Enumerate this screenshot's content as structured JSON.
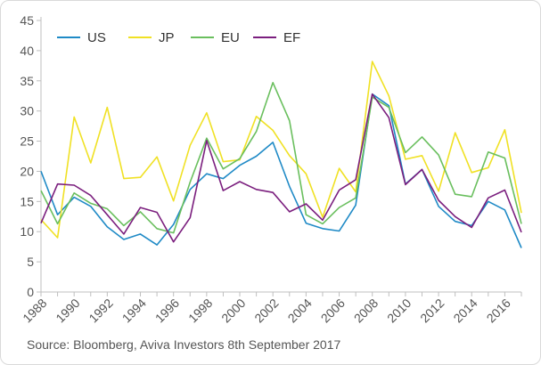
{
  "chart_data": {
    "type": "line",
    "x": [
      1988,
      1989,
      1990,
      1991,
      1992,
      1993,
      1994,
      1995,
      1996,
      1997,
      1998,
      1999,
      2000,
      2001,
      2002,
      2003,
      2004,
      2005,
      2006,
      2007,
      2008,
      2009,
      2010,
      2011,
      2012,
      2013,
      2014,
      2015,
      2016,
      2017
    ],
    "x_tick_labels": [
      "1988",
      "1990",
      "1992",
      "1994",
      "1996",
      "1998",
      "2000",
      "2002",
      "2004",
      "2006",
      "2008",
      "2010",
      "2012",
      "2014",
      "2016"
    ],
    "ylim": [
      0,
      45
    ],
    "y_ticks": [
      0,
      5,
      10,
      15,
      20,
      25,
      30,
      35,
      40,
      45
    ],
    "grid": false,
    "legend_position": "top-left",
    "series": [
      {
        "name": "US",
        "color": "#1f8ac6",
        "values": [
          20.0,
          12.8,
          15.7,
          14.2,
          10.8,
          8.7,
          9.6,
          7.8,
          11.2,
          17.0,
          19.6,
          18.8,
          21.0,
          22.5,
          24.8,
          17.5,
          11.4,
          10.5,
          10.1,
          14.4,
          32.8,
          30.9,
          17.9,
          20.3,
          14.2,
          11.7,
          11.0,
          15.0,
          13.6,
          7.3
        ]
      },
      {
        "name": "JP",
        "color": "#f0e124",
        "values": [
          12.0,
          9.0,
          29.0,
          21.4,
          30.6,
          18.8,
          19.0,
          22.4,
          15.1,
          24.3,
          29.7,
          21.6,
          21.9,
          29.1,
          26.8,
          22.6,
          19.6,
          12.4,
          20.5,
          16.6,
          38.2,
          32.5,
          22.0,
          22.6,
          16.7,
          26.4,
          19.8,
          20.6,
          26.9,
          13.1
        ]
      },
      {
        "name": "EU",
        "color": "#6abf5e",
        "values": [
          16.8,
          11.3,
          16.4,
          14.7,
          13.8,
          11.0,
          13.3,
          10.5,
          9.8,
          18.2,
          25.5,
          20.4,
          22.1,
          26.6,
          34.7,
          28.4,
          12.8,
          11.3,
          14.0,
          15.6,
          32.3,
          30.6,
          23.1,
          25.7,
          22.7,
          16.2,
          15.8,
          23.2,
          22.2,
          11.3
        ]
      },
      {
        "name": "EF",
        "color": "#7b1f7e",
        "values": [
          11.4,
          17.9,
          17.7,
          16.0,
          12.8,
          9.6,
          14.0,
          13.2,
          8.3,
          12.3,
          25.1,
          16.8,
          18.3,
          17.0,
          16.5,
          13.3,
          14.6,
          11.9,
          16.9,
          18.6,
          32.8,
          28.9,
          17.8,
          20.3,
          15.2,
          12.5,
          10.7,
          15.6,
          16.9,
          9.9
        ]
      }
    ]
  },
  "source_text": "Source: Bloomberg, Aviva Investors 8th September 2017"
}
